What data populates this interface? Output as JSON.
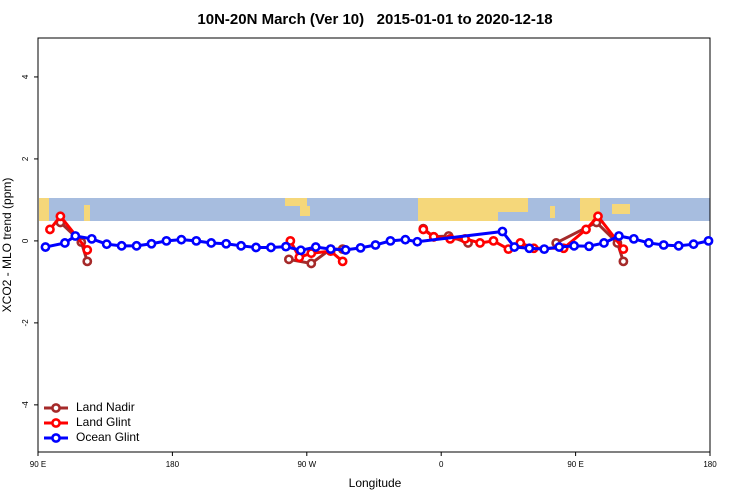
{
  "chart_data": {
    "type": "line",
    "title": "10N-20N March (Ver 10)   2015-01-01 to 2020-12-18",
    "x_label": "Longitude",
    "y_label": "XCO2 - MLO trend (ppm)",
    "xlim": [
      90,
      540
    ],
    "ylim": [
      -5.15,
      4.95
    ],
    "xticks": [
      {
        "value": 90,
        "label": "90 E"
      },
      {
        "value": 180,
        "label": "180"
      },
      {
        "value": 270,
        "label": "90 W"
      },
      {
        "value": 360,
        "label": "0"
      },
      {
        "value": 450,
        "label": "90 E"
      },
      {
        "value": 540,
        "label": "180"
      }
    ],
    "yticks": [
      -4,
      -2,
      0,
      2,
      4
    ],
    "legend": "bottom-left",
    "series": [
      {
        "name": "Land Nadir",
        "color": "#a52a2a",
        "x": [
          105,
          119,
          123,
          null,
          258,
          273,
          286,
          294,
          null,
          348,
          355,
          365,
          378,
          null,
          437,
          464,
          478,
          482
        ],
        "values": [
          0.45,
          -0.03,
          -0.5,
          null,
          -0.45,
          -0.55,
          -0.2,
          -0.2,
          null,
          0.3,
          0.1,
          0.12,
          -0.05,
          null,
          -0.05,
          0.45,
          -0.05,
          -0.5
        ]
      },
      {
        "name": "Land Glint",
        "color": "#ff0000",
        "x": [
          98,
          105,
          123,
          null,
          259,
          265,
          273,
          286,
          294,
          null,
          348,
          355,
          366,
          376,
          386,
          395,
          405,
          413,
          422,
          442,
          457,
          465,
          482
        ],
        "values": [
          0.28,
          0.6,
          -0.22,
          null,
          0,
          -0.4,
          -0.3,
          -0.25,
          -0.5,
          null,
          0.28,
          0.1,
          0.05,
          0.05,
          -0.05,
          0,
          -0.2,
          -0.05,
          -0.18,
          -0.18,
          0.28,
          0.6,
          -0.2
        ]
      },
      {
        "name": "Ocean Glint",
        "color": "#0000ff",
        "x": [
          95,
          108,
          115,
          126,
          136,
          146,
          156,
          166,
          176,
          186,
          196,
          206,
          216,
          226,
          236,
          246,
          256,
          266,
          276,
          286,
          296,
          306,
          316,
          326,
          336,
          344,
          401,
          409,
          419,
          429,
          439,
          449,
          459,
          469,
          479,
          489,
          499,
          509,
          519,
          529,
          539
        ],
        "values": [
          -0.15,
          -0.05,
          0.12,
          0.05,
          -0.08,
          -0.12,
          -0.12,
          -0.07,
          0,
          0.03,
          0,
          -0.05,
          -0.07,
          -0.12,
          -0.16,
          -0.16,
          -0.14,
          -0.23,
          -0.15,
          -0.2,
          -0.22,
          -0.17,
          -0.1,
          0,
          0.03,
          -0.02,
          0.23,
          -0.15,
          -0.18,
          -0.2,
          -0.15,
          -0.12,
          -0.13,
          -0.05,
          0.12,
          0.05,
          -0.05,
          -0.1,
          -0.12,
          -0.08,
          0
        ]
      }
    ]
  }
}
